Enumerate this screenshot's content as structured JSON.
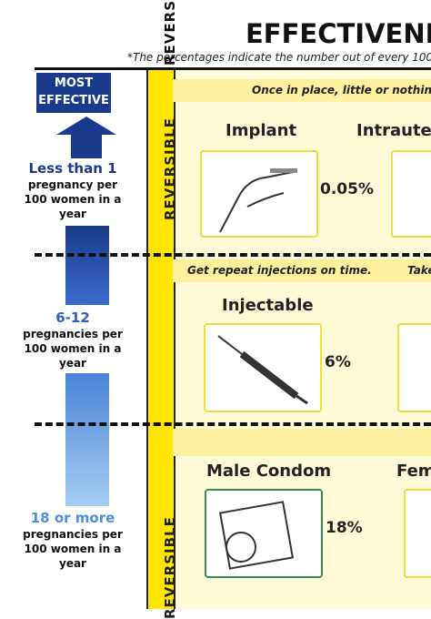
{
  "header": {
    "title": "EFFECTIVENE",
    "subtitle": "*The percentages indicate the number out of every 100"
  },
  "side": {
    "badge": "MOST EFFECTIVE",
    "tiers": [
      {
        "value": "Less than 1",
        "label": "pregnancy per 100 women in a year"
      },
      {
        "value": "6-12",
        "label": "pregnancies per 100 women in a year"
      },
      {
        "value": "18 or more",
        "label": "pregnancies per 100 women in a year"
      }
    ]
  },
  "band": {
    "labels": [
      "REVERSIBLE",
      "REVERSIBLE",
      "REVERSIBLE"
    ]
  },
  "rows": [
    {
      "note": "Once in place, little or nothing t",
      "methods": [
        {
          "name": "Implant",
          "rate": "0.05%"
        },
        {
          "name": "Intrauter"
        }
      ]
    },
    {
      "note": "Get repeat injections on time.",
      "note2": "Take",
      "methods": [
        {
          "name": "Injectable",
          "rate": "6%"
        }
      ]
    },
    {
      "methods": [
        {
          "name": "Male Condom",
          "rate": "18%"
        },
        {
          "name": "Fem"
        }
      ]
    }
  ]
}
